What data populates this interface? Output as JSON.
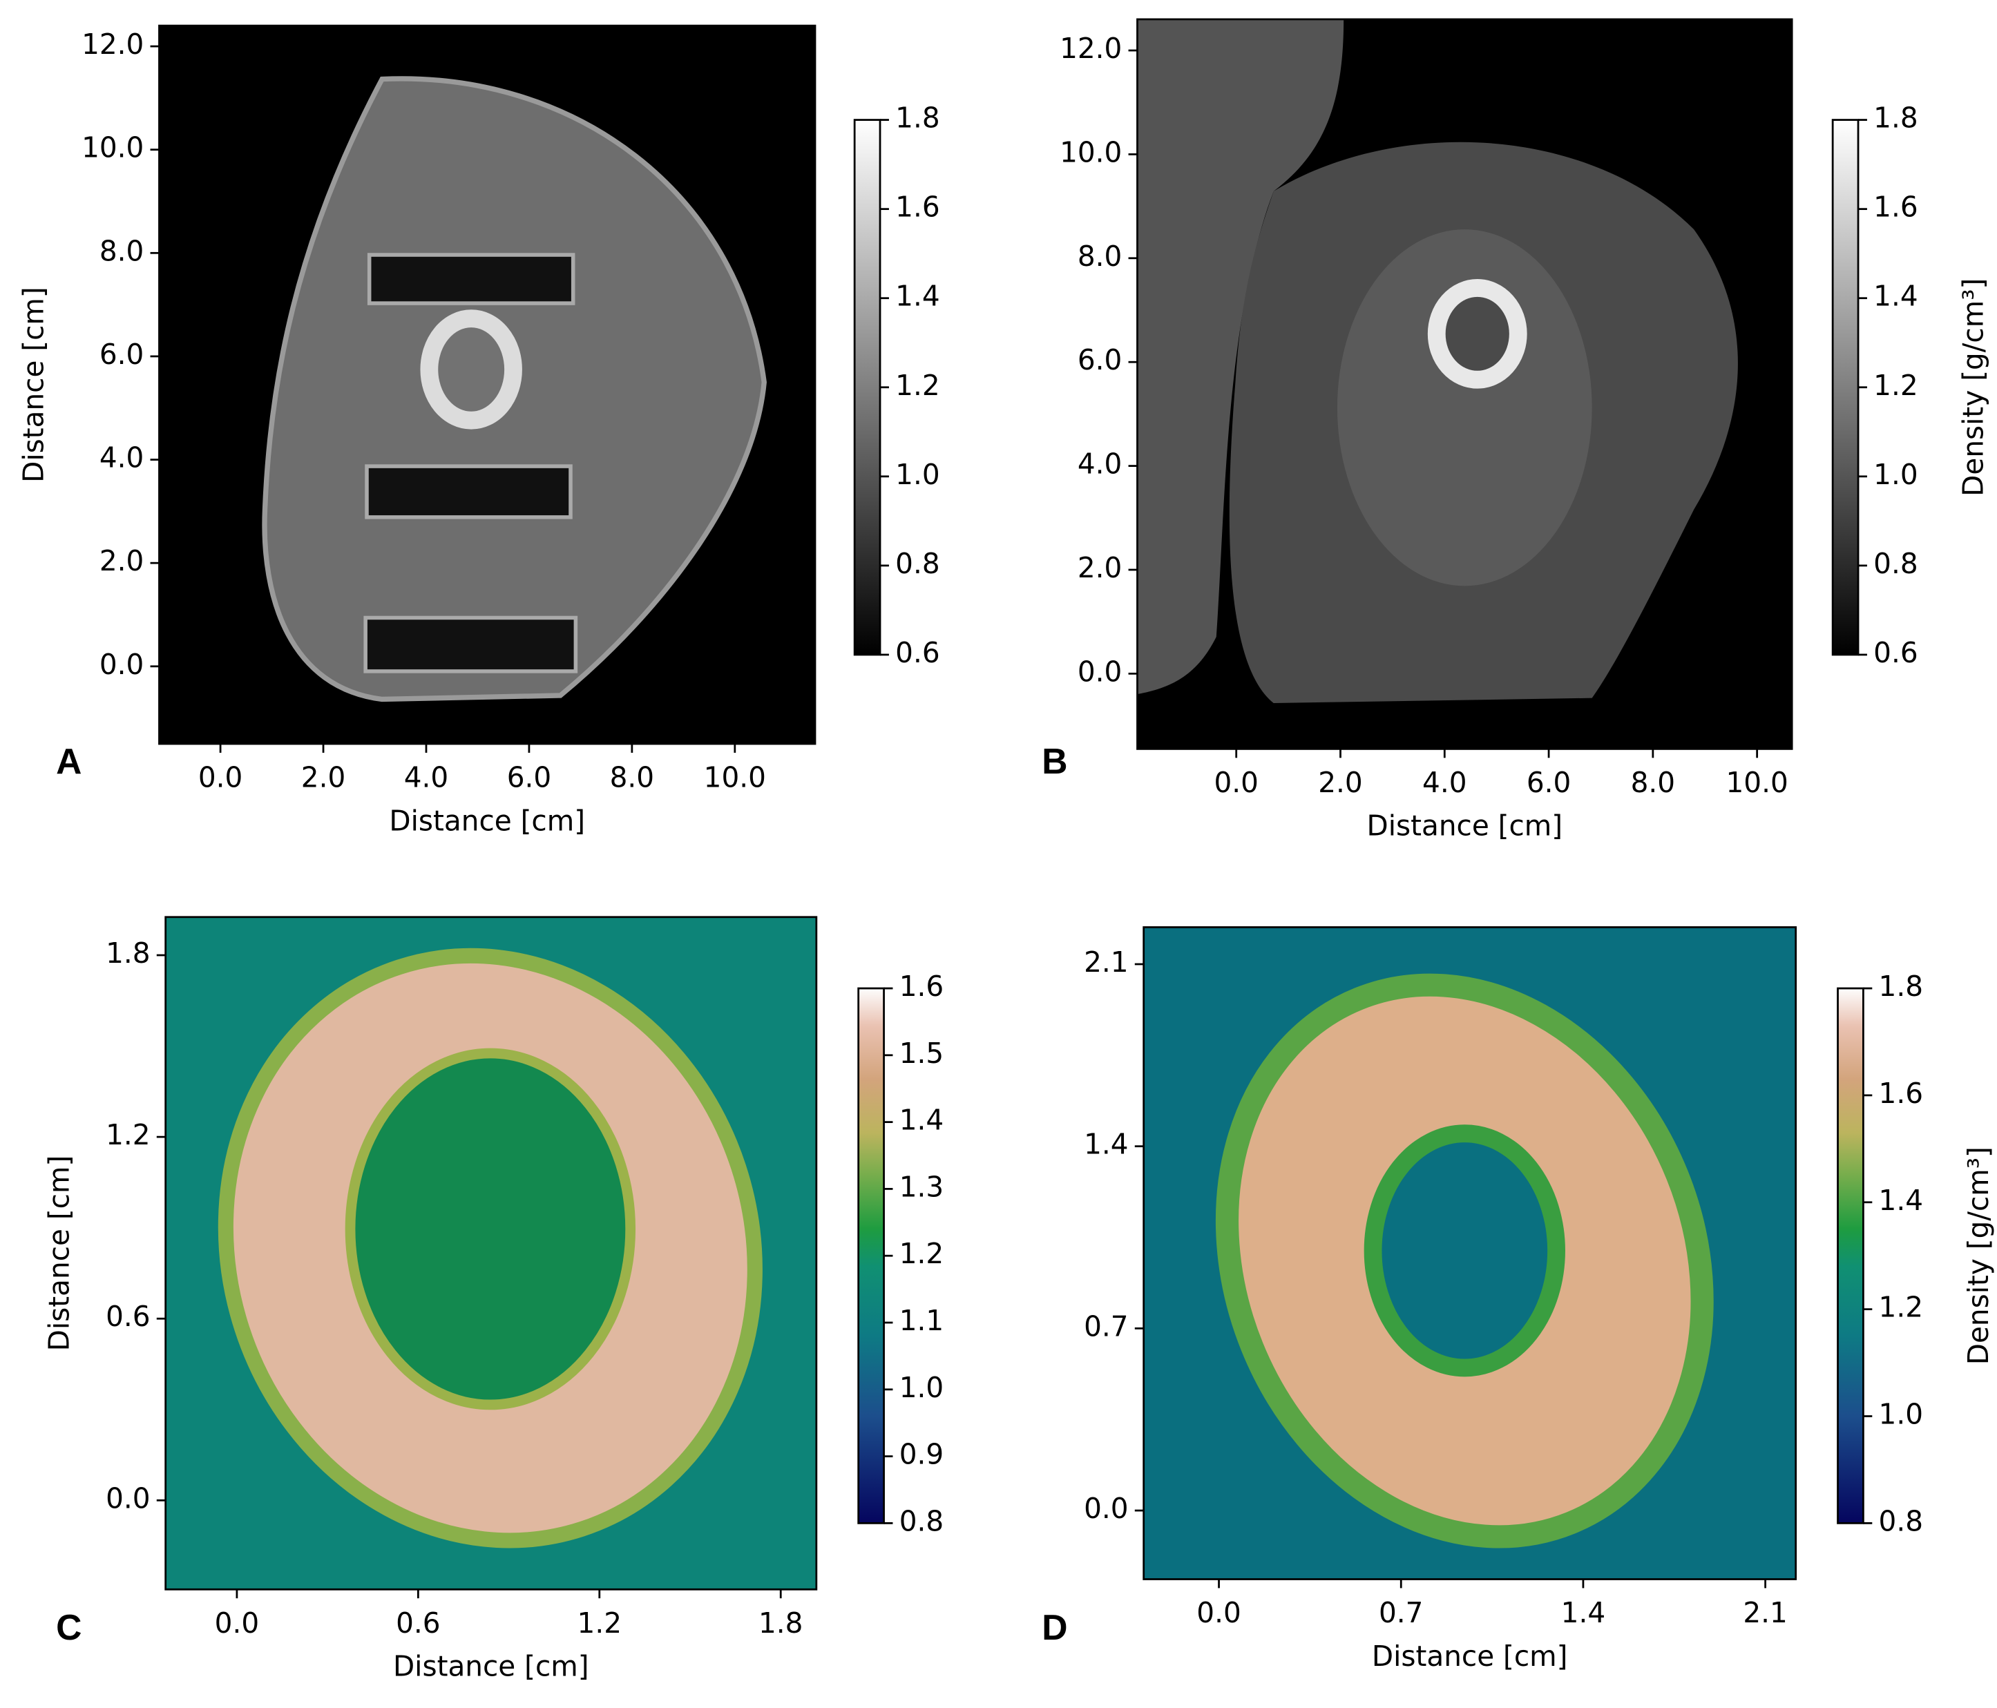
{
  "chart_data": [
    {
      "type": "image",
      "panel_label": "A",
      "xlabel": "Distance [cm]",
      "ylabel": "Distance [cm]",
      "xlim": [
        -1.19,
        11.56
      ],
      "ylim": [
        -1.5,
        12.4
      ],
      "xticks": [
        {
          "value": 0,
          "label": "0.0"
        },
        {
          "value": 2,
          "label": "2.0"
        },
        {
          "value": 4,
          "label": "4.0"
        },
        {
          "value": 6,
          "label": "6.0"
        },
        {
          "value": 8,
          "label": "8.0"
        },
        {
          "value": 10,
          "label": "10.0"
        }
      ],
      "yticks": [
        {
          "value": 0,
          "label": "0.0"
        },
        {
          "value": 2,
          "label": "2.0"
        },
        {
          "value": 4,
          "label": "4.0"
        },
        {
          "value": 6,
          "label": "6.0"
        },
        {
          "value": 8,
          "label": "8.0"
        },
        {
          "value": 10,
          "label": "10.0"
        },
        {
          "value": 12,
          "label": "12.0"
        }
      ],
      "colorbar": {
        "colormap": "gray",
        "lim": [
          0.6,
          1.8
        ],
        "ticks": [
          0.6,
          0.8,
          {
            "value": 1,
            "label": "1.0"
          },
          1.2,
          1.4,
          1.6,
          1.8
        ]
      }
    },
    {
      "type": "image",
      "panel_label": "B",
      "xlabel": "Distance [cm]",
      "xlim": [
        -1.9,
        10.67
      ],
      "ylim": [
        -1.45,
        12.6
      ],
      "xticks": [
        {
          "value": 0,
          "label": "0.0"
        },
        {
          "value": 2,
          "label": "2.0"
        },
        {
          "value": 4,
          "label": "4.0"
        },
        {
          "value": 6,
          "label": "6.0"
        },
        {
          "value": 8,
          "label": "8.0"
        },
        {
          "value": 10,
          "label": "10.0"
        }
      ],
      "yticks": [
        {
          "value": 0,
          "label": "0.0"
        },
        {
          "value": 2,
          "label": "2.0"
        },
        {
          "value": 4,
          "label": "4.0"
        },
        {
          "value": 6,
          "label": "6.0"
        },
        {
          "value": 8,
          "label": "8.0"
        },
        {
          "value": 10,
          "label": "10.0"
        },
        {
          "value": 12,
          "label": "12.0"
        }
      ],
      "colorbar": {
        "colormap": "gray",
        "label": "Density [g/cm³]",
        "lim": [
          0.6,
          1.8
        ],
        "ticks": [
          0.6,
          0.8,
          {
            "value": 1,
            "label": "1.0"
          },
          1.2,
          1.4,
          1.6,
          1.8
        ]
      }
    },
    {
      "type": "image",
      "panel_label": "C",
      "xlabel": "Distance [cm]",
      "ylabel": "Distance [cm]",
      "xlim": [
        -0.236,
        1.918
      ],
      "ylim": [
        -0.294,
        1.926
      ],
      "xticks": [
        {
          "value": 0,
          "label": "0.0"
        },
        0.6,
        1.2,
        1.8
      ],
      "yticks": [
        {
          "value": 0,
          "label": "0.0"
        },
        0.6,
        1.2,
        1.8
      ],
      "colorbar": {
        "colormap": "gist_earth",
        "lim": [
          0.8,
          1.6
        ],
        "ticks": [
          0.8,
          0.9,
          {
            "value": 1,
            "label": "1.0"
          },
          1.1,
          1.2,
          1.3,
          1.4,
          1.5,
          1.6
        ]
      }
    },
    {
      "type": "image",
      "panel_label": "D",
      "xlabel": "Distance [cm]",
      "xlim": [
        -0.289,
        2.217
      ],
      "ylim": [
        -0.264,
        2.242
      ],
      "xticks": [
        {
          "value": 0,
          "label": "0.0"
        },
        0.7,
        1.4,
        2.1
      ],
      "yticks": [
        {
          "value": 0,
          "label": "0.0"
        },
        0.7,
        1.4,
        2.1
      ],
      "colorbar": {
        "colormap": "gist_earth",
        "label": "Density [g/cm³]",
        "lim": [
          0.8,
          1.8
        ],
        "ticks": [
          0.8,
          {
            "value": 1,
            "label": "1.0"
          },
          1.2,
          1.4,
          1.6,
          1.8
        ]
      }
    }
  ]
}
